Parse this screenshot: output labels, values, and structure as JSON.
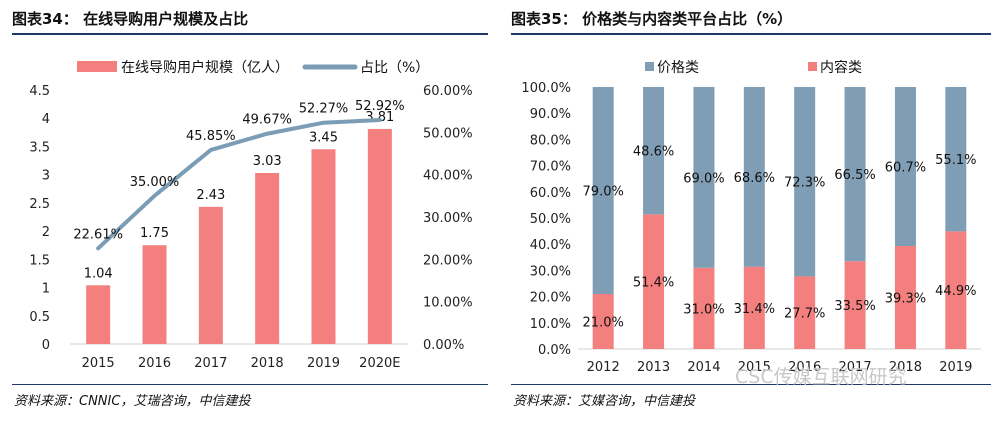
{
  "left_panel": {
    "title": "图表34：  在线导购用户规模及占比",
    "source": "资料来源：CNNIC，艾瑞咨询，中信建投"
  },
  "right_panel": {
    "title": "图表35：  价格类与内容类平台占比（%）",
    "source": "资料来源：艾媒咨询，中信建投"
  },
  "watermark": "CSC传媒互联网研究",
  "colors": {
    "bar": "#f47f7f",
    "line": "#7a9db5",
    "price": "#7f9db5",
    "content": "#f47f7f",
    "rule": "#1f3a6a"
  },
  "chart_data": [
    {
      "type": "bar",
      "categories": [
        "2015",
        "2016",
        "2017",
        "2018",
        "2019",
        "2020E"
      ],
      "series": [
        {
          "name": "在线导购用户规模（亿人）",
          "axis": "left",
          "values": [
            1.04,
            1.75,
            2.43,
            3.03,
            3.45,
            3.81
          ],
          "labels": [
            "1.04",
            "1.75",
            "2.43",
            "3.03",
            "3.45",
            "3.81"
          ]
        },
        {
          "name": "占比（%）",
          "type": "line",
          "axis": "right",
          "values": [
            22.61,
            35.0,
            45.85,
            49.67,
            52.27,
            52.92
          ],
          "labels": [
            "22.61%",
            "35.00%",
            "45.85%",
            "49.67%",
            "52.27%",
            "52.92%"
          ]
        }
      ],
      "yleft": {
        "lim": [
          0,
          4.5
        ],
        "ticks": [
          "0",
          "0.5",
          "1",
          "1.5",
          "2",
          "2.5",
          "3",
          "3.5",
          "4",
          "4.5"
        ]
      },
      "yright": {
        "lim": [
          0,
          60
        ],
        "ticks": [
          "0.00%",
          "10.00%",
          "20.00%",
          "30.00%",
          "40.00%",
          "50.00%",
          "60.00%"
        ]
      },
      "legend": "top"
    },
    {
      "type": "bar",
      "stacked": true,
      "categories": [
        "2012",
        "2013",
        "2014",
        "2015",
        "2016",
        "2017",
        "2018",
        "2019"
      ],
      "series": [
        {
          "name": "价格类",
          "values": [
            79.0,
            48.6,
            69.0,
            68.6,
            72.3,
            66.5,
            60.7,
            55.1
          ],
          "labels": [
            "79.0%",
            "48.6%",
            "69.0%",
            "68.6%",
            "72.3%",
            "66.5%",
            "60.7%",
            "55.1%"
          ]
        },
        {
          "name": "内容类",
          "values": [
            21.0,
            51.4,
            31.0,
            31.4,
            27.7,
            33.5,
            39.3,
            44.9
          ],
          "labels": [
            "21.0%",
            "51.4%",
            "31.0%",
            "31.4%",
            "27.7%",
            "33.5%",
            "39.3%",
            "44.9%"
          ]
        }
      ],
      "ylim": [
        0,
        100
      ],
      "yticks": [
        "0.0%",
        "10.0%",
        "20.0%",
        "30.0%",
        "40.0%",
        "50.0%",
        "60.0%",
        "70.0%",
        "80.0%",
        "90.0%",
        "100.0%"
      ],
      "legend": "top"
    }
  ]
}
